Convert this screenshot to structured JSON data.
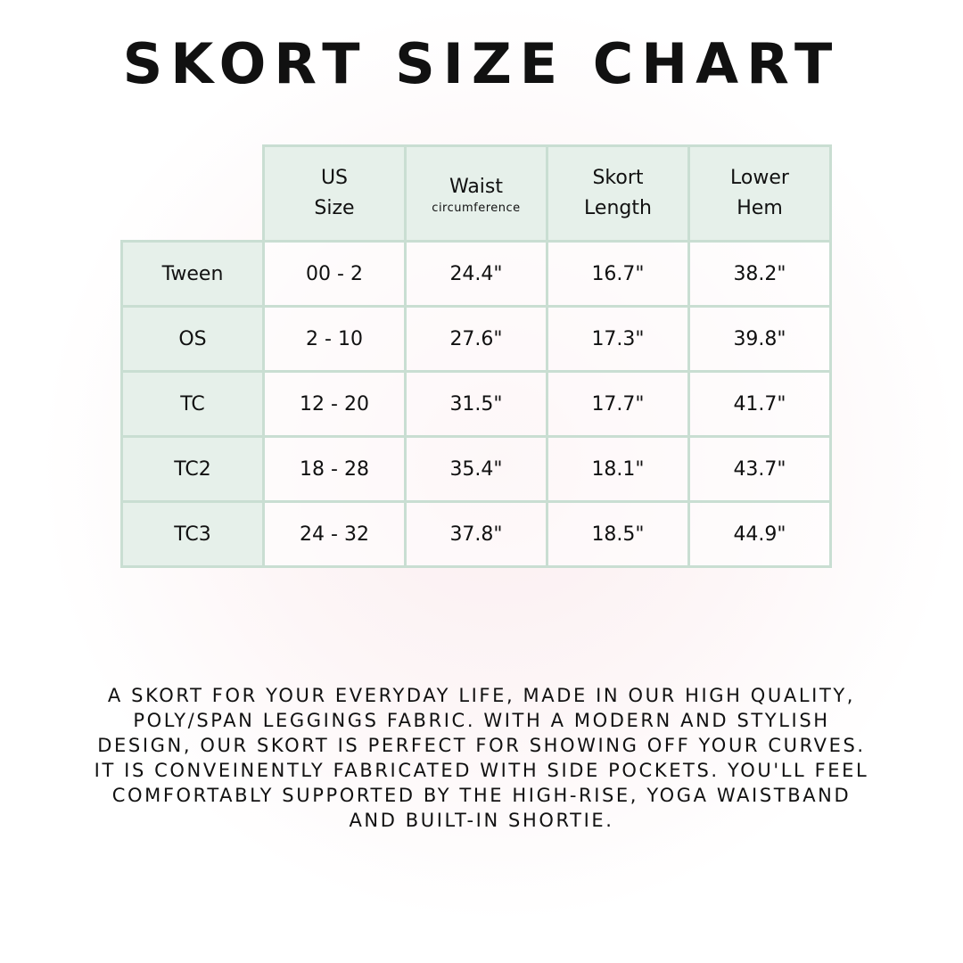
{
  "title": "SKORT SIZE CHART",
  "table": {
    "headers": [
      {
        "line1": "US",
        "line2": "Size",
        "sub": ""
      },
      {
        "line1": "Waist",
        "line2": "",
        "sub": "circumference"
      },
      {
        "line1": "Skort",
        "line2": "Length",
        "sub": ""
      },
      {
        "line1": "Lower",
        "line2": "Hem",
        "sub": ""
      }
    ],
    "rows": [
      {
        "label": "Tween",
        "cells": [
          "00 - 2",
          "24.4\"",
          "16.7\"",
          "38.2\""
        ]
      },
      {
        "label": "OS",
        "cells": [
          "2 - 10",
          "27.6\"",
          "17.3\"",
          "39.8\""
        ]
      },
      {
        "label": "TC",
        "cells": [
          "12 - 20",
          "31.5\"",
          "17.7\"",
          "41.7\""
        ]
      },
      {
        "label": "TC2",
        "cells": [
          "18 - 28",
          "35.4\"",
          "18.1\"",
          "43.7\""
        ]
      },
      {
        "label": "TC3",
        "cells": [
          "24 - 32",
          "37.8\"",
          "18.5\"",
          "44.9\""
        ]
      }
    ]
  },
  "description": "A skort for your everyday life, made in our high quality, poly/span leggings fabric. With a modern and stylish design, our skort is perfect for showing off your curves. It is conveinently fabricated with side pockets. You'll feel comfortably supported by the high-rise, yoga waistband and built-in shortie.",
  "colors": {
    "border": "#c9ded2",
    "header_fill": "#e6f0ea",
    "text": "#111111"
  }
}
